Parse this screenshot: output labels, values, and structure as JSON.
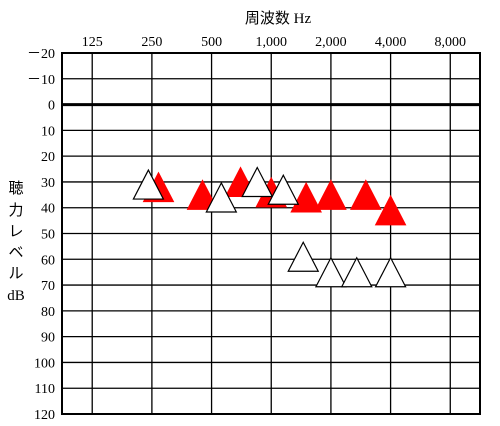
{
  "chart_data": {
    "type": "scatter",
    "title": "周波数 Hz",
    "ylabel_lines": [
      "聴",
      "力",
      "レ",
      "ベ",
      "ル",
      "dB"
    ],
    "x_ticks": [
      "125",
      "250",
      "500",
      "1,000",
      "2,000",
      "4,000",
      "8,000"
    ],
    "x_scale": "log2-frequency",
    "x_range_hz": [
      88,
      11300
    ],
    "y_ticks": [
      "－20",
      "－10",
      "0",
      "10",
      "20",
      "30",
      "40",
      "50",
      "60",
      "70",
      "80",
      "90",
      "100",
      "110",
      "120"
    ],
    "y_values": [
      -20,
      -10,
      0,
      10,
      20,
      30,
      40,
      50,
      60,
      70,
      80,
      90,
      100,
      110,
      120
    ],
    "ylim": [
      -20,
      120
    ],
    "y_inverted": true,
    "grid": true,
    "reference_line_db": 0,
    "series": [
      {
        "marker": "filled-triangle",
        "color": "#ff0000",
        "points": [
          {
            "hz": 270,
            "db": 33
          },
          {
            "hz": 450,
            "db": 36
          },
          {
            "hz": 700,
            "db": 31
          },
          {
            "hz": 1000,
            "db": 35
          },
          {
            "hz": 1500,
            "db": 37
          },
          {
            "hz": 2000,
            "db": 36
          },
          {
            "hz": 3000,
            "db": 36
          },
          {
            "hz": 4000,
            "db": 42
          }
        ]
      },
      {
        "marker": "open-triangle",
        "color": "#000000",
        "points": [
          {
            "hz": 240,
            "db": 32
          },
          {
            "hz": 560,
            "db": 37
          },
          {
            "hz": 850,
            "db": 31
          },
          {
            "hz": 1150,
            "db": 34
          },
          {
            "hz": 1450,
            "db": 60
          },
          {
            "hz": 2000,
            "db": 66
          },
          {
            "hz": 2700,
            "db": 66
          },
          {
            "hz": 4000,
            "db": 66
          }
        ]
      }
    ]
  }
}
